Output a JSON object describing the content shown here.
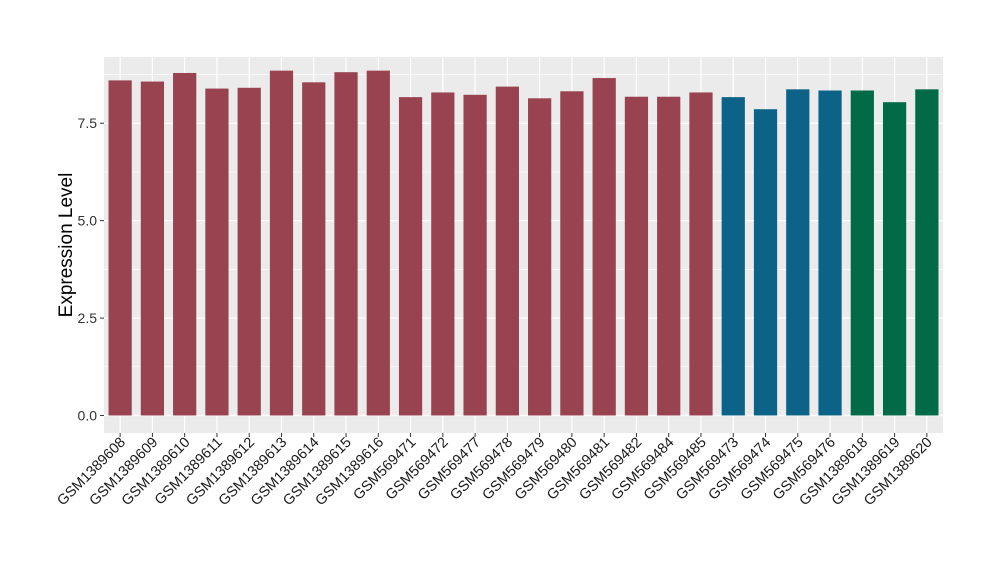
{
  "chart_data": {
    "type": "bar",
    "title": "",
    "xlabel": "",
    "ylabel": "Expression Level",
    "ylim": [
      -0.45,
      9.2
    ],
    "yticks": [
      0.0,
      2.5,
      5.0,
      7.5
    ],
    "ytick_labels": [
      "0.0",
      "2.5",
      "5.0",
      "7.5"
    ],
    "grid": true,
    "legend": "none",
    "background_color": "#ebebeb",
    "grid_color": "#ffffff",
    "categories": [
      "GSM1389608",
      "GSM1389609",
      "GSM1389610",
      "GSM1389611",
      "GSM1389612",
      "GSM1389613",
      "GSM1389614",
      "GSM1389615",
      "GSM1389616",
      "GSM569471",
      "GSM569472",
      "GSM569477",
      "GSM569478",
      "GSM569479",
      "GSM569480",
      "GSM569481",
      "GSM569482",
      "GSM569484",
      "GSM569485",
      "GSM569473",
      "GSM569474",
      "GSM569475",
      "GSM569476",
      "GSM1389618",
      "GSM1389619",
      "GSM1389620"
    ],
    "values": [
      8.6,
      8.57,
      8.79,
      8.39,
      8.41,
      8.85,
      8.55,
      8.81,
      8.85,
      8.17,
      8.29,
      8.23,
      8.44,
      8.14,
      8.32,
      8.66,
      8.18,
      8.18,
      8.29,
      8.17,
      7.86,
      8.37,
      8.34,
      8.34,
      8.04,
      8.37
    ],
    "colors": [
      "#98434f",
      "#98434f",
      "#98434f",
      "#98434f",
      "#98434f",
      "#98434f",
      "#98434f",
      "#98434f",
      "#98434f",
      "#98434f",
      "#98434f",
      "#98434f",
      "#98434f",
      "#98434f",
      "#98434f",
      "#98434f",
      "#98434f",
      "#98434f",
      "#98434f",
      "#0c6387",
      "#0c6387",
      "#0c6387",
      "#0c6387",
      "#016a46",
      "#016a46",
      "#016a46"
    ]
  }
}
